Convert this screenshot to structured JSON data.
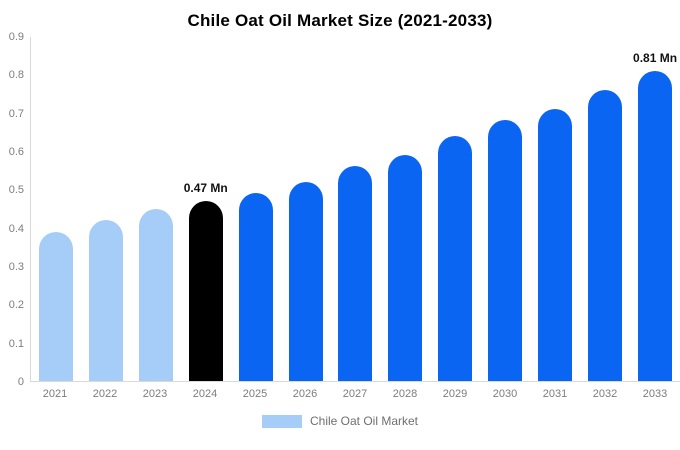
{
  "chart_data": {
    "type": "bar",
    "title": "Chile Oat Oil Market Size (2021-2033)",
    "xlabel": "",
    "ylabel": "",
    "unit": "Mn",
    "categories": [
      "2021",
      "2022",
      "2023",
      "2024",
      "2025",
      "2026",
      "2027",
      "2028",
      "2029",
      "2030",
      "2031",
      "2032",
      "2033"
    ],
    "values": [
      0.39,
      0.42,
      0.45,
      0.47,
      0.49,
      0.52,
      0.56,
      0.59,
      0.64,
      0.68,
      0.71,
      0.76,
      0.81
    ],
    "ylim": [
      0,
      0.9
    ],
    "yticks": [
      0,
      0.1,
      0.2,
      0.3,
      0.4,
      0.5,
      0.6,
      0.7,
      0.8,
      0.9
    ],
    "grid": false,
    "legend_position": "bottom",
    "legend": [
      {
        "label": "Chile Oat Oil Market",
        "color": "#a5cdf7"
      }
    ],
    "annotations": [
      {
        "category": "2024",
        "text": "0.47 Mn"
      },
      {
        "category": "2033",
        "text": "0.81 Mn"
      }
    ],
    "bar_colors": [
      "#a5cdf7",
      "#a5cdf7",
      "#a5cdf7",
      "#000000",
      "#0a66f2",
      "#0a66f2",
      "#0a66f2",
      "#0a66f2",
      "#0a66f2",
      "#0a66f2",
      "#0a66f2",
      "#0a66f2",
      "#0a66f2"
    ],
    "colors": {
      "light_blue": "#a5cdf7",
      "primary_blue": "#0a66f2",
      "highlight_black": "#000000",
      "axis_line": "#d9d9d9",
      "tick_label": "#7d7d7d",
      "title": "#000000"
    }
  }
}
